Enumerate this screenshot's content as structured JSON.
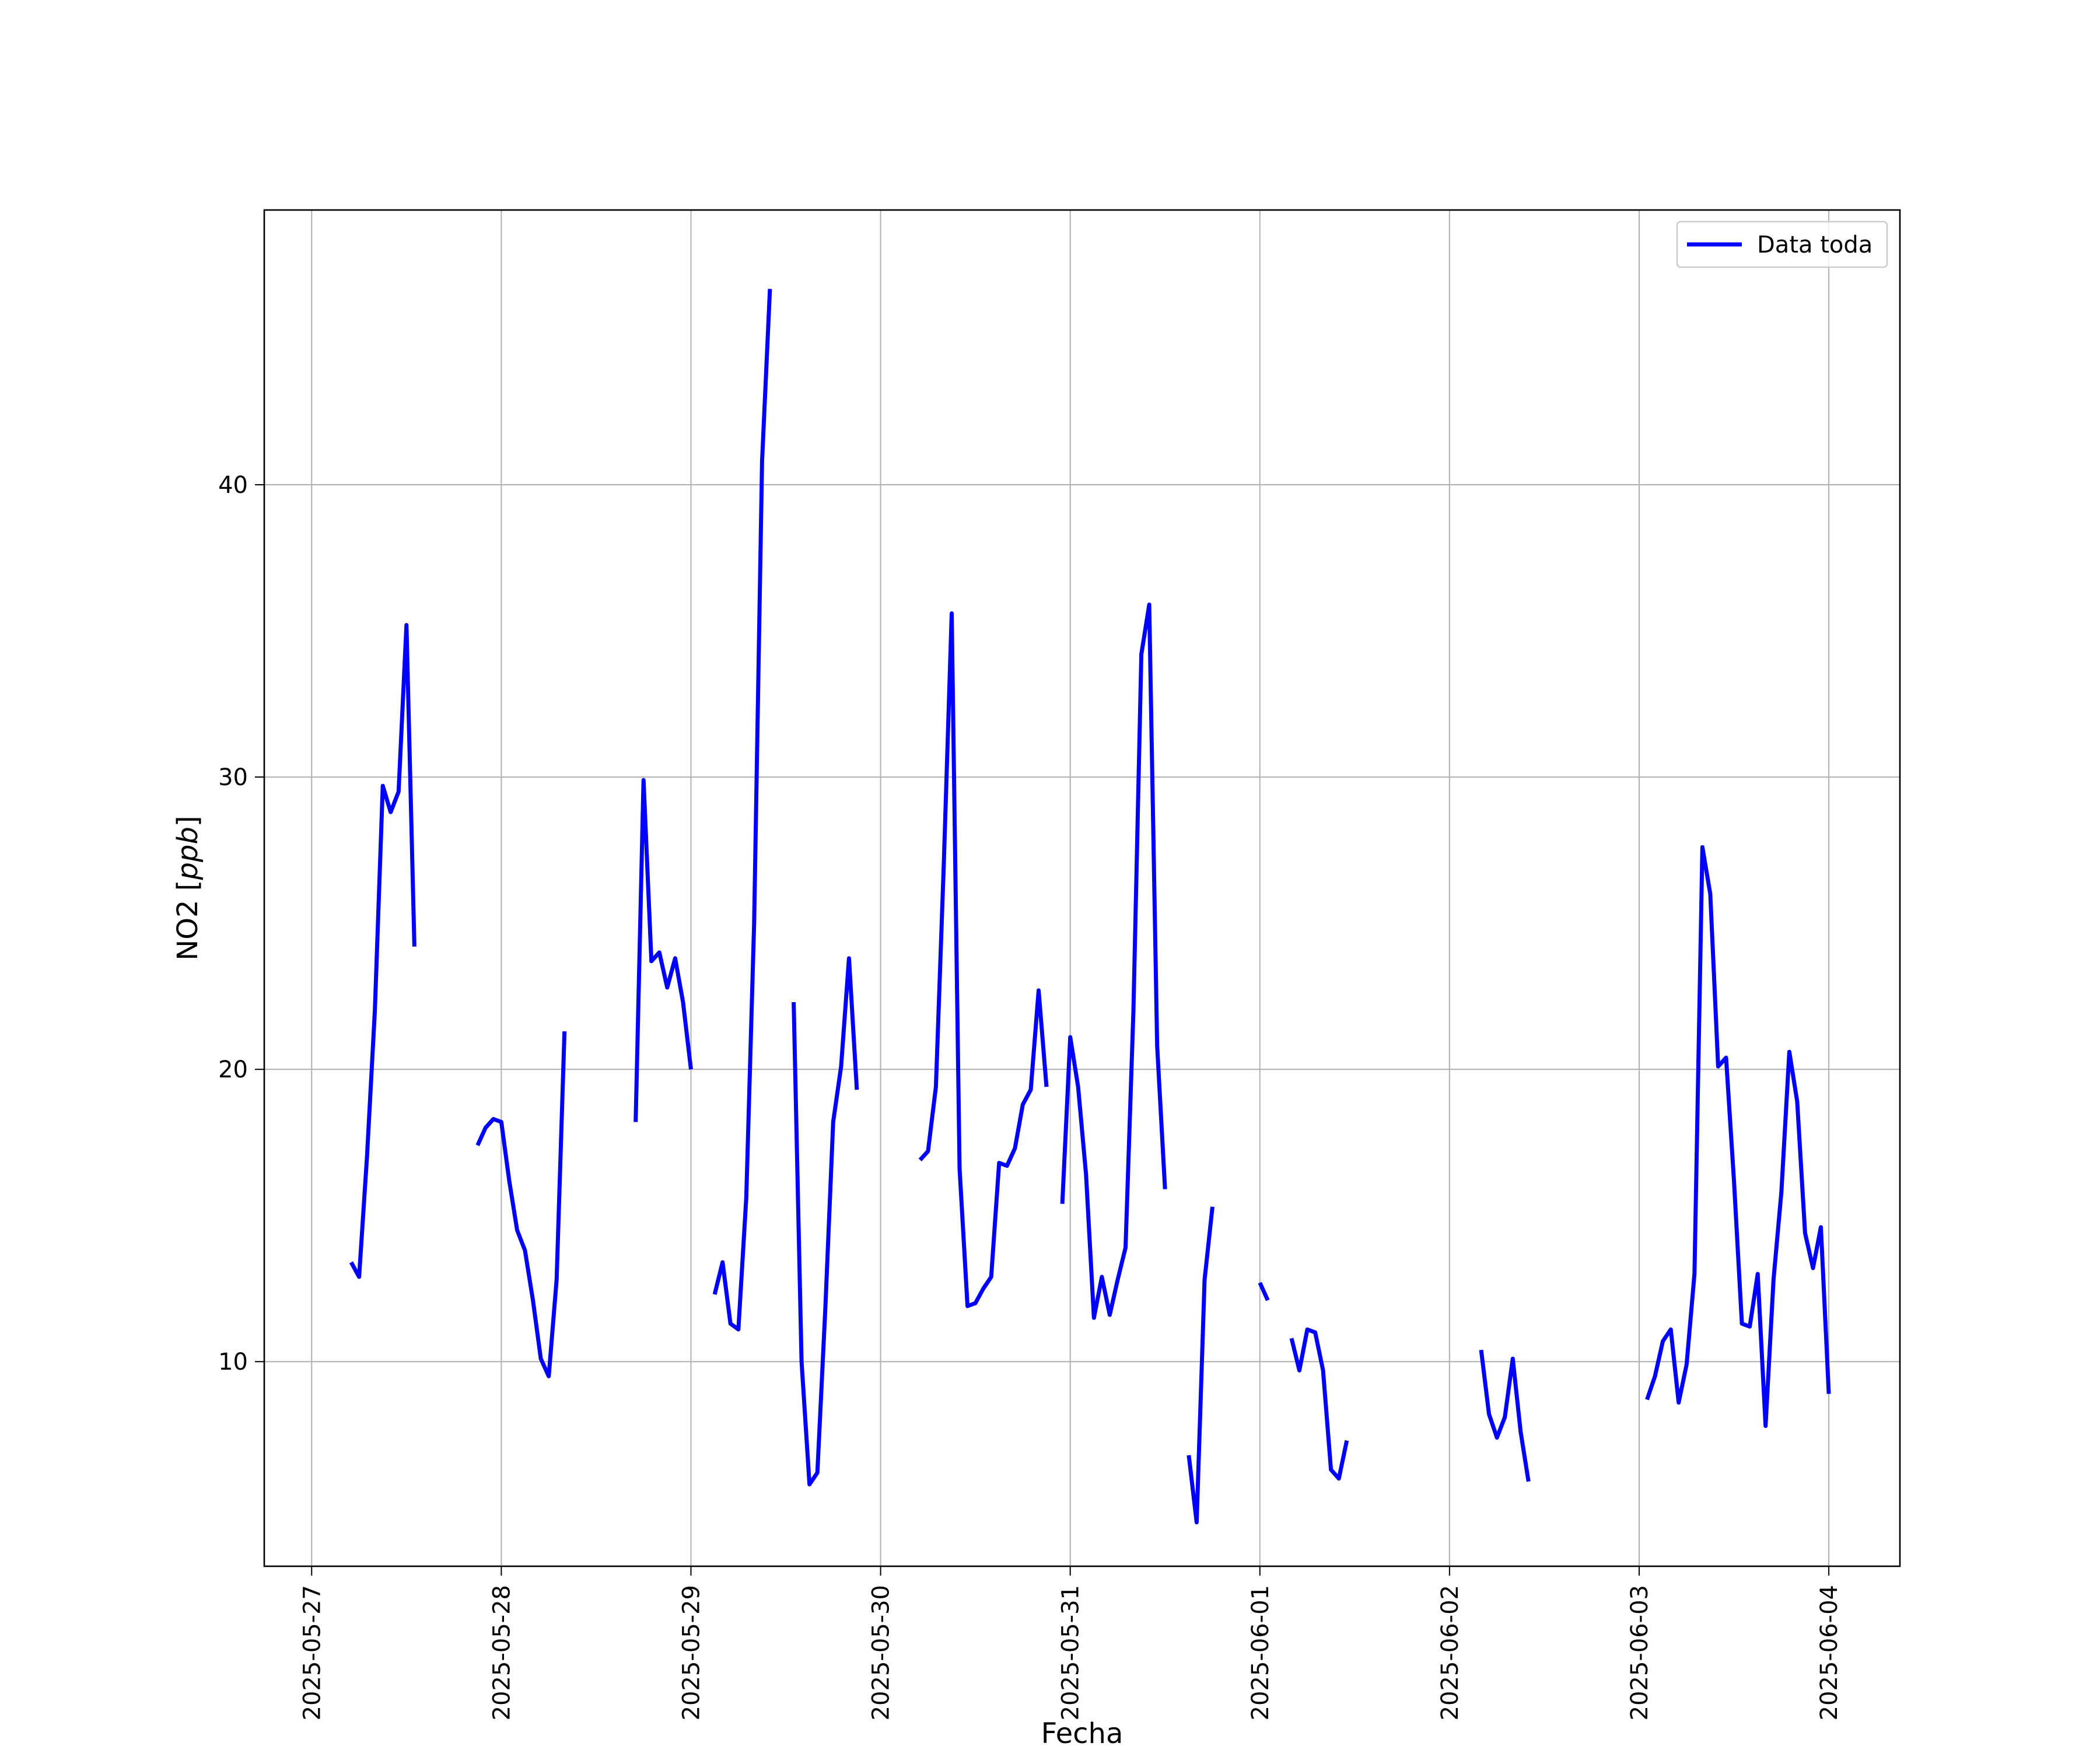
{
  "chart_data": {
    "type": "line",
    "title": "",
    "xlabel": "Fecha",
    "ylabel": "NO2 [ppb]",
    "ylabel_main": "NO2 [",
    "ylabel_unit": "ppb",
    "ylabel_close": "]",
    "xlim": [
      "2025-05-26T18:00",
      "2025-06-04T09:00"
    ],
    "ylim": [
      3.0,
      49.4
    ],
    "x_ticks": [
      "2025-05-27",
      "2025-05-28",
      "2025-05-29",
      "2025-05-30",
      "2025-05-31",
      "2025-06-01",
      "2025-06-02",
      "2025-06-03",
      "2025-06-04"
    ],
    "y_ticks": [
      10,
      20,
      30,
      40
    ],
    "y_tick_labels": [
      "10",
      "20",
      "30",
      "40"
    ],
    "grid": true,
    "legend_position": "top-right",
    "series": [
      {
        "name": "Data toda",
        "color": "#0000ff",
        "segments": [
          [
            [
              "2025-05-27T05:00",
              13.4
            ],
            [
              "2025-05-27T06:00",
              12.9
            ],
            [
              "2025-05-27T07:00",
              17.0
            ],
            [
              "2025-05-27T08:00",
              22.0
            ],
            [
              "2025-05-27T09:00",
              29.7
            ],
            [
              "2025-05-27T10:00",
              28.8
            ],
            [
              "2025-05-27T11:00",
              29.5
            ],
            [
              "2025-05-27T12:00",
              35.2
            ],
            [
              "2025-05-27T13:00",
              24.2
            ]
          ],
          [
            [
              "2025-05-27T21:00",
              17.4
            ],
            [
              "2025-05-27T22:00",
              18.0
            ],
            [
              "2025-05-27T23:00",
              18.3
            ],
            [
              "2025-05-28T00:00",
              18.2
            ],
            [
              "2025-05-28T01:00",
              16.2
            ],
            [
              "2025-05-28T02:00",
              14.5
            ],
            [
              "2025-05-28T03:00",
              13.8
            ],
            [
              "2025-05-28T04:00",
              12.1
            ],
            [
              "2025-05-28T05:00",
              10.1
            ],
            [
              "2025-05-28T06:00",
              9.5
            ],
            [
              "2025-05-28T07:00",
              12.8
            ],
            [
              "2025-05-28T08:00",
              21.3
            ]
          ],
          [
            [
              "2025-05-28T17:00",
              18.2
            ],
            [
              "2025-05-28T18:00",
              29.9
            ],
            [
              "2025-05-28T19:00",
              23.7
            ],
            [
              "2025-05-28T20:00",
              24.0
            ],
            [
              "2025-05-28T21:00",
              22.8
            ],
            [
              "2025-05-28T22:00",
              23.8
            ],
            [
              "2025-05-28T23:00",
              22.3
            ],
            [
              "2025-05-29T00:00",
              20.0
            ]
          ],
          [
            [
              "2025-05-29T03:00",
              12.3
            ],
            [
              "2025-05-29T04:00",
              13.4
            ],
            [
              "2025-05-29T05:00",
              11.3
            ],
            [
              "2025-05-29T06:00",
              11.1
            ],
            [
              "2025-05-29T07:00",
              15.6
            ],
            [
              "2025-05-29T08:00",
              25.0
            ],
            [
              "2025-05-29T09:00",
              40.8
            ],
            [
              "2025-05-29T10:00",
              46.7
            ]
          ],
          [
            [
              "2025-05-29T13:00",
              22.3
            ],
            [
              "2025-05-29T14:00",
              10.0
            ],
            [
              "2025-05-29T15:00",
              5.8
            ],
            [
              "2025-05-29T16:00",
              6.2
            ],
            [
              "2025-05-29T17:00",
              11.8
            ],
            [
              "2025-05-29T18:00",
              18.2
            ],
            [
              "2025-05-29T19:00",
              20.1
            ],
            [
              "2025-05-29T20:00",
              23.8
            ],
            [
              "2025-05-29T21:00",
              19.3
            ]
          ],
          [
            [
              "2025-05-30T05:00",
              16.9
            ],
            [
              "2025-05-30T06:00",
              17.2
            ],
            [
              "2025-05-30T07:00",
              19.4
            ],
            [
              "2025-05-30T08:00",
              27.0
            ],
            [
              "2025-05-30T09:00",
              35.6
            ],
            [
              "2025-05-30T10:00",
              16.6
            ],
            [
              "2025-05-30T11:00",
              11.9
            ],
            [
              "2025-05-30T12:00",
              12.0
            ],
            [
              "2025-05-30T13:00",
              12.5
            ],
            [
              "2025-05-30T14:00",
              12.9
            ],
            [
              "2025-05-30T15:00",
              16.8
            ],
            [
              "2025-05-30T16:00",
              16.7
            ],
            [
              "2025-05-30T17:00",
              17.3
            ],
            [
              "2025-05-30T18:00",
              18.8
            ],
            [
              "2025-05-30T19:00",
              19.3
            ],
            [
              "2025-05-30T20:00",
              22.7
            ],
            [
              "2025-05-30T21:00",
              19.4
            ]
          ],
          [
            [
              "2025-05-30T23:00",
              15.4
            ],
            [
              "2025-05-31T00:00",
              21.1
            ],
            [
              "2025-05-31T01:00",
              19.4
            ],
            [
              "2025-05-31T02:00",
              16.4
            ],
            [
              "2025-05-31T03:00",
              11.5
            ],
            [
              "2025-05-31T04:00",
              12.9
            ],
            [
              "2025-05-31T05:00",
              11.6
            ],
            [
              "2025-05-31T06:00",
              12.8
            ],
            [
              "2025-05-31T07:00",
              13.9
            ],
            [
              "2025-05-31T08:00",
              22.0
            ],
            [
              "2025-05-31T09:00",
              34.2
            ],
            [
              "2025-05-31T10:00",
              35.9
            ],
            [
              "2025-05-31T11:00",
              20.8
            ],
            [
              "2025-05-31T12:00",
              15.9
            ]
          ],
          [
            [
              "2025-05-31T15:00",
              6.8
            ],
            [
              "2025-05-31T16:00",
              4.5
            ],
            [
              "2025-05-31T17:00",
              12.8
            ],
            [
              "2025-05-31T18:00",
              15.3
            ]
          ],
          [
            [
              "2025-06-01T00:00",
              12.7
            ],
            [
              "2025-06-01T01:00",
              12.1
            ]
          ],
          [
            [
              "2025-06-01T04:00",
              10.8
            ],
            [
              "2025-06-01T05:00",
              9.7
            ],
            [
              "2025-06-01T06:00",
              11.1
            ],
            [
              "2025-06-01T07:00",
              11.0
            ],
            [
              "2025-06-01T08:00",
              9.7
            ],
            [
              "2025-06-01T09:00",
              6.3
            ],
            [
              "2025-06-01T10:00",
              6.0
            ],
            [
              "2025-06-01T11:00",
              7.3
            ]
          ],
          [
            [
              "2025-06-02T04:00",
              10.4
            ],
            [
              "2025-06-02T05:00",
              8.2
            ],
            [
              "2025-06-02T06:00",
              7.4
            ],
            [
              "2025-06-02T07:00",
              8.1
            ],
            [
              "2025-06-02T08:00",
              10.1
            ],
            [
              "2025-06-02T09:00",
              7.6
            ],
            [
              "2025-06-02T10:00",
              5.9
            ]
          ],
          [
            [
              "2025-06-03T01:00",
              8.7
            ],
            [
              "2025-06-03T02:00",
              9.5
            ],
            [
              "2025-06-03T03:00",
              10.7
            ],
            [
              "2025-06-03T04:00",
              11.1
            ],
            [
              "2025-06-03T05:00",
              8.6
            ],
            [
              "2025-06-03T06:00",
              9.9
            ],
            [
              "2025-06-03T07:00",
              13.0
            ],
            [
              "2025-06-03T08:00",
              27.6
            ],
            [
              "2025-06-03T09:00",
              26.0
            ],
            [
              "2025-06-03T10:00",
              20.1
            ],
            [
              "2025-06-03T11:00",
              20.4
            ],
            [
              "2025-06-03T12:00",
              16.2
            ],
            [
              "2025-06-03T13:00",
              11.3
            ],
            [
              "2025-06-03T14:00",
              11.2
            ],
            [
              "2025-06-03T15:00",
              13.0
            ],
            [
              "2025-06-03T16:00",
              7.8
            ],
            [
              "2025-06-03T17:00",
              12.8
            ],
            [
              "2025-06-03T18:00",
              15.8
            ],
            [
              "2025-06-03T19:00",
              20.6
            ],
            [
              "2025-06-03T20:00",
              18.9
            ],
            [
              "2025-06-03T21:00",
              14.4
            ],
            [
              "2025-06-03T22:00",
              13.2
            ],
            [
              "2025-06-03T23:00",
              14.6
            ],
            [
              "2025-06-04T00:00",
              8.9
            ]
          ]
        ]
      }
    ]
  }
}
